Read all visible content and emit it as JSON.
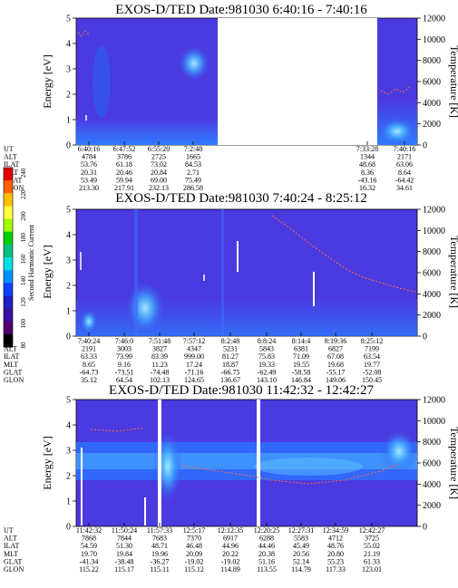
{
  "colorbar": {
    "label": "Second Harmonic Current",
    "ticks": [
      "240",
      "220",
      "200",
      "180",
      "160",
      "140",
      "120",
      "100",
      "80"
    ],
    "colors": [
      "#e00000",
      "#ff6000",
      "#ffc000",
      "#ffff40",
      "#a0ff00",
      "#00d000",
      "#00c080",
      "#00e0e0",
      "#0090ff",
      "#1040ff",
      "#2020c0",
      "#3a10a0",
      "#500070",
      "#000000"
    ]
  },
  "colors": {
    "background": "#4a3ae0",
    "low_band": "#2a68ff",
    "glow": "#70d0ff",
    "gap": "#ffffff",
    "trace": "#ff6a3a"
  },
  "chart_data": [
    {
      "type": "heatmap",
      "title": "EXOS-D/TED   Date:981030   6:40:16 - 7:40:16",
      "ylabel": "Energy [eV]",
      "ylabel_right": "Temperature [K]",
      "ylim": [
        0,
        5
      ],
      "ylim_right": [
        0,
        12000
      ],
      "yticks": [
        "0",
        "1",
        "2",
        "3",
        "4",
        "5"
      ],
      "yticks_right": [
        "0",
        "2000",
        "4000",
        "6000",
        "8000",
        "10000",
        "12000"
      ],
      "data_gaps": [
        [
          0.38,
          0.88
        ]
      ],
      "table": {
        "rows": [
          "UT",
          "ALT",
          "ILAT",
          "MLT",
          "GLAT",
          "GLON"
        ],
        "columns": [
          [
            "6:40:16",
            "4784",
            "53.76",
            "20.31",
            "53.49",
            "213.30"
          ],
          [
            "6:47:52",
            "3786",
            "61.18",
            "20.46",
            "59.94",
            "217.91"
          ],
          [
            "6:55:20",
            "2725",
            "73.02",
            "20.84",
            "69.00",
            "232.13"
          ],
          [
            "7:2:48",
            "1665",
            "84.53",
            "2.71",
            "75.49",
            "286.58"
          ],
          [
            "",
            "",
            "",
            "",
            "",
            ""
          ],
          [
            "",
            "",
            "",
            "",
            "",
            ""
          ],
          [
            "",
            "",
            "",
            "",
            "",
            ""
          ],
          [
            "",
            "",
            "",
            "",
            "",
            ""
          ],
          [
            "7:33:28",
            "1344",
            "48.68",
            "8.36",
            "-43.16",
            "16.32"
          ],
          [
            "7:40:16",
            "2171",
            "63.06",
            "8.64",
            "-64.42",
            "34.61"
          ]
        ]
      }
    },
    {
      "type": "heatmap",
      "title": "EXOS-D/TED   Date:981030   7:40:24 - 8:25:12",
      "ylabel": "Energy [eV]",
      "ylabel_right": "Temperature [K]",
      "ylim": [
        0,
        5
      ],
      "ylim_right": [
        0,
        12000
      ],
      "yticks": [
        "0",
        "1",
        "2",
        "3",
        "4",
        "5"
      ],
      "yticks_right": [
        "0",
        "2000",
        "4000",
        "6000",
        "8000",
        "10000",
        "12000"
      ],
      "data_gaps": [],
      "table": {
        "rows": [
          "UT",
          "ALT",
          "ILAT",
          "MLT",
          "GLAT",
          "GLON"
        ],
        "columns": [
          [
            "7:40:24",
            "2191",
            "63.33",
            "8.65",
            "-64.73",
            "35.12"
          ],
          [
            "7:46:0",
            "3003",
            "73.99",
            "9.16",
            "-73.51",
            "64.54"
          ],
          [
            "7:51:48",
            "3827",
            "83.39",
            "11.23",
            "-74.48",
            "102.13"
          ],
          [
            "7:57:12",
            "4347",
            "999.00",
            "17.24",
            "-71.16",
            "124.65"
          ],
          [
            "8:2:48",
            "5231",
            "81.27",
            "18.87",
            "-66.75",
            "136.67"
          ],
          [
            "8:8:24",
            "5843",
            "75.83",
            "19.33",
            "-62.49",
            "143.10"
          ],
          [
            "8:14:4",
            "6381",
            "71.09",
            "19.55",
            "-58.58",
            "146.84"
          ],
          [
            "8:19:36",
            "6827",
            "67.08",
            "19.68",
            "-55.17",
            "149.06"
          ],
          [
            "8:25:12",
            "7199",
            "63.54",
            "19.77",
            "-52.08",
            "150.45"
          ]
        ]
      }
    },
    {
      "type": "heatmap",
      "title": "EXOS-D/TED   Date:981030   11:42:32 - 12:42:27",
      "ylabel": "Energy [eV]",
      "ylabel_right": "Temperature [K]",
      "ylim": [
        0,
        5
      ],
      "ylim_right": [
        0,
        12000
      ],
      "yticks": [
        "0",
        "1",
        "2",
        "3",
        "4",
        "5"
      ],
      "yticks_right": [
        "0",
        "2000",
        "4000",
        "6000",
        "8000",
        "10000",
        "12000"
      ],
      "data_gaps": [],
      "table": {
        "rows": [
          "UT",
          "ALT",
          "ILAT",
          "MLT",
          "GLAT",
          "GLON"
        ],
        "columns": [
          [
            "11:42:32",
            "7868",
            "54.59",
            "19.70",
            "-41.34",
            "115.22"
          ],
          [
            "11:50:24",
            "7844",
            "51.30",
            "19.84",
            "-38.48",
            "115.17"
          ],
          [
            "11:57:33",
            "7683",
            "48.71",
            "19.96",
            "-36.27",
            "115.11"
          ],
          [
            "12:5:17",
            "7370",
            "46.48",
            "20.09",
            "-19.02",
            "115.12"
          ],
          [
            "12:12:35",
            "6917",
            "44.96",
            "20.22",
            "-19.02",
            "114.89"
          ],
          [
            "12:20:25",
            "6288",
            "44.46",
            "20.38",
            "51.16",
            "113.55"
          ],
          [
            "12:27:31",
            "5583",
            "45.49",
            "20.56",
            "52.14",
            "114.79"
          ],
          [
            "12:34:59",
            "4712",
            "48.76",
            "20.80",
            "55.23",
            "117.33"
          ],
          [
            "12:42:27",
            "3725",
            "55.02",
            "21.19",
            "61.33",
            "123.01"
          ]
        ]
      }
    }
  ]
}
